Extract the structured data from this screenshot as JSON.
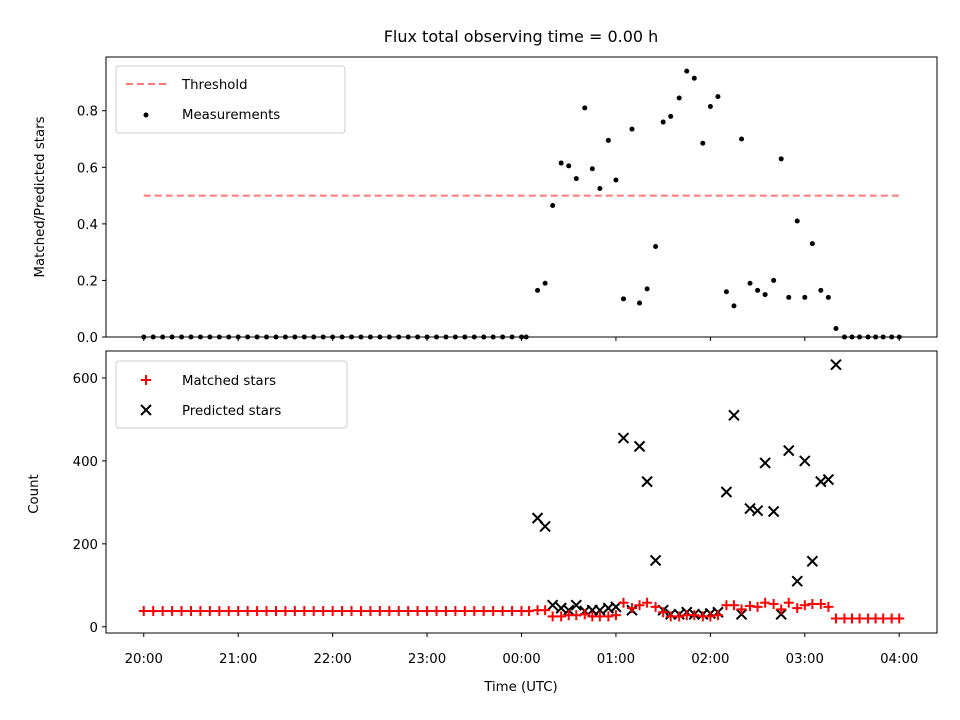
{
  "chart_data": [
    {
      "type": "scatter",
      "title": "Flux total observing time = 0.00 h",
      "xlabel": "",
      "ylabel": "Matched/Predicted stars",
      "ylim": [
        0,
        0.99
      ],
      "yticks": [
        0.0,
        0.2,
        0.4,
        0.6,
        0.8
      ],
      "ytick_labels": [
        "0.0",
        "0.2",
        "0.4",
        "0.6",
        "0.8"
      ],
      "xlim_hours": [
        -0.4,
        8.4
      ],
      "legend_position": "top-left",
      "legend": [
        "Threshold",
        "Measurements"
      ],
      "threshold": {
        "name": "Threshold",
        "value": 0.5,
        "x_range_hours": [
          0,
          8
        ],
        "color": "#ff7777"
      },
      "series": [
        {
          "name": "Measurements",
          "marker": "dot",
          "color": "#000000",
          "points": [
            [
              0.0,
              0
            ],
            [
              0.1,
              0
            ],
            [
              0.2,
              0
            ],
            [
              0.3,
              0
            ],
            [
              0.4,
              0
            ],
            [
              0.5,
              0
            ],
            [
              0.6,
              0
            ],
            [
              0.7,
              0
            ],
            [
              0.8,
              0
            ],
            [
              0.9,
              0
            ],
            [
              1.0,
              0
            ],
            [
              1.1,
              0
            ],
            [
              1.2,
              0
            ],
            [
              1.3,
              0
            ],
            [
              1.4,
              0
            ],
            [
              1.5,
              0
            ],
            [
              1.6,
              0
            ],
            [
              1.7,
              0
            ],
            [
              1.8,
              0
            ],
            [
              1.9,
              0
            ],
            [
              2.0,
              0
            ],
            [
              2.1,
              0
            ],
            [
              2.2,
              0
            ],
            [
              2.3,
              0
            ],
            [
              2.4,
              0
            ],
            [
              2.5,
              0
            ],
            [
              2.6,
              0
            ],
            [
              2.7,
              0
            ],
            [
              2.8,
              0
            ],
            [
              2.9,
              0
            ],
            [
              3.0,
              0
            ],
            [
              3.1,
              0
            ],
            [
              3.2,
              0
            ],
            [
              3.3,
              0
            ],
            [
              3.4,
              0
            ],
            [
              3.5,
              0
            ],
            [
              3.6,
              0
            ],
            [
              3.7,
              0
            ],
            [
              3.8,
              0
            ],
            [
              3.9,
              0
            ],
            [
              4.0,
              0
            ],
            [
              4.05,
              0
            ],
            [
              4.17,
              0.165
            ],
            [
              4.25,
              0.19
            ],
            [
              4.33,
              0.465
            ],
            [
              4.42,
              0.615
            ],
            [
              4.5,
              0.605
            ],
            [
              4.58,
              0.56
            ],
            [
              4.67,
              0.81
            ],
            [
              4.75,
              0.595
            ],
            [
              4.83,
              0.525
            ],
            [
              4.92,
              0.695
            ],
            [
              5.0,
              0.555
            ],
            [
              5.08,
              0.135
            ],
            [
              5.17,
              0.735
            ],
            [
              5.25,
              0.12
            ],
            [
              5.33,
              0.17
            ],
            [
              5.42,
              0.32
            ],
            [
              5.5,
              0.76
            ],
            [
              5.58,
              0.78
            ],
            [
              5.67,
              0.845
            ],
            [
              5.75,
              0.94
            ],
            [
              5.83,
              0.915
            ],
            [
              5.92,
              0.685
            ],
            [
              6.0,
              0.815
            ],
            [
              6.08,
              0.85
            ],
            [
              6.17,
              0.16
            ],
            [
              6.25,
              0.11
            ],
            [
              6.33,
              0.7
            ],
            [
              6.42,
              0.19
            ],
            [
              6.5,
              0.165
            ],
            [
              6.58,
              0.15
            ],
            [
              6.67,
              0.2
            ],
            [
              6.75,
              0.63
            ],
            [
              6.83,
              0.14
            ],
            [
              6.92,
              0.41
            ],
            [
              7.0,
              0.14
            ],
            [
              7.08,
              0.33
            ],
            [
              7.17,
              0.165
            ],
            [
              7.25,
              0.14
            ],
            [
              7.33,
              0.03
            ],
            [
              7.42,
              0
            ],
            [
              7.5,
              0
            ],
            [
              7.58,
              0
            ],
            [
              7.67,
              0
            ],
            [
              7.75,
              0
            ],
            [
              7.83,
              0
            ],
            [
              7.92,
              0
            ],
            [
              8.0,
              0
            ]
          ]
        }
      ]
    },
    {
      "type": "scatter",
      "title": "",
      "xlabel": "Time (UTC)",
      "ylabel": "Count",
      "ylim": [
        -15,
        665
      ],
      "yticks": [
        0,
        200,
        400,
        600
      ],
      "ytick_labels": [
        "0",
        "200",
        "400",
        "600"
      ],
      "xlim_hours": [
        -0.4,
        8.4
      ],
      "xticks_hours": [
        0,
        1,
        2,
        3,
        4,
        5,
        6,
        7,
        8
      ],
      "xtick_labels": [
        "20:00",
        "21:00",
        "22:00",
        "23:00",
        "00:00",
        "01:00",
        "02:00",
        "03:00",
        "04:00"
      ],
      "legend_position": "top-left",
      "legend": [
        "Matched stars",
        "Predicted stars"
      ],
      "series": [
        {
          "name": "Matched stars",
          "marker": "plus",
          "color": "#ff0000",
          "points": [
            [
              0.0,
              38
            ],
            [
              0.1,
              38
            ],
            [
              0.2,
              38
            ],
            [
              0.3,
              38
            ],
            [
              0.4,
              38
            ],
            [
              0.5,
              38
            ],
            [
              0.6,
              38
            ],
            [
              0.7,
              38
            ],
            [
              0.8,
              38
            ],
            [
              0.9,
              38
            ],
            [
              1.0,
              38
            ],
            [
              1.1,
              38
            ],
            [
              1.2,
              38
            ],
            [
              1.3,
              38
            ],
            [
              1.4,
              38
            ],
            [
              1.5,
              38
            ],
            [
              1.6,
              38
            ],
            [
              1.7,
              38
            ],
            [
              1.8,
              38
            ],
            [
              1.9,
              38
            ],
            [
              2.0,
              38
            ],
            [
              2.1,
              38
            ],
            [
              2.2,
              38
            ],
            [
              2.3,
              38
            ],
            [
              2.4,
              38
            ],
            [
              2.5,
              38
            ],
            [
              2.6,
              38
            ],
            [
              2.7,
              38
            ],
            [
              2.8,
              38
            ],
            [
              2.9,
              38
            ],
            [
              3.0,
              38
            ],
            [
              3.1,
              38
            ],
            [
              3.2,
              38
            ],
            [
              3.3,
              38
            ],
            [
              3.4,
              38
            ],
            [
              3.5,
              38
            ],
            [
              3.6,
              38
            ],
            [
              3.7,
              38
            ],
            [
              3.8,
              38
            ],
            [
              3.9,
              38
            ],
            [
              4.0,
              38
            ],
            [
              4.08,
              38
            ],
            [
              4.17,
              40
            ],
            [
              4.25,
              40
            ],
            [
              4.33,
              25
            ],
            [
              4.42,
              25
            ],
            [
              4.5,
              28
            ],
            [
              4.58,
              28
            ],
            [
              4.67,
              30
            ],
            [
              4.75,
              25
            ],
            [
              4.83,
              25
            ],
            [
              4.92,
              25
            ],
            [
              5.0,
              28
            ],
            [
              5.08,
              58
            ],
            [
              5.17,
              45
            ],
            [
              5.25,
              52
            ],
            [
              5.33,
              58
            ],
            [
              5.42,
              48
            ],
            [
              5.5,
              35
            ],
            [
              5.58,
              25
            ],
            [
              5.67,
              25
            ],
            [
              5.75,
              28
            ],
            [
              5.83,
              28
            ],
            [
              5.92,
              25
            ],
            [
              6.0,
              25
            ],
            [
              6.08,
              28
            ],
            [
              6.17,
              52
            ],
            [
              6.25,
              52
            ],
            [
              6.33,
              42
            ],
            [
              6.42,
              50
            ],
            [
              6.5,
              48
            ],
            [
              6.58,
              58
            ],
            [
              6.67,
              55
            ],
            [
              6.75,
              42
            ],
            [
              6.83,
              58
            ],
            [
              6.92,
              45
            ],
            [
              7.0,
              52
            ],
            [
              7.08,
              55
            ],
            [
              7.17,
              55
            ],
            [
              7.25,
              48
            ],
            [
              7.33,
              20
            ],
            [
              7.42,
              20
            ],
            [
              7.5,
              20
            ],
            [
              7.58,
              20
            ],
            [
              7.67,
              20
            ],
            [
              7.75,
              20
            ],
            [
              7.83,
              20
            ],
            [
              7.92,
              20
            ],
            [
              8.0,
              20
            ]
          ]
        },
        {
          "name": "Predicted stars",
          "marker": "x",
          "color": "#000000",
          "points": [
            [
              4.17,
              262
            ],
            [
              4.25,
              242
            ],
            [
              4.33,
              52
            ],
            [
              4.42,
              45
            ],
            [
              4.5,
              40
            ],
            [
              4.58,
              52
            ],
            [
              4.67,
              38
            ],
            [
              4.75,
              40
            ],
            [
              4.83,
              40
            ],
            [
              4.92,
              45
            ],
            [
              5.0,
              48
            ],
            [
              5.08,
              455
            ],
            [
              5.17,
              40
            ],
            [
              5.25,
              435
            ],
            [
              5.33,
              350
            ],
            [
              5.42,
              160
            ],
            [
              5.5,
              40
            ],
            [
              5.58,
              30
            ],
            [
              5.67,
              30
            ],
            [
              5.75,
              35
            ],
            [
              5.83,
              30
            ],
            [
              5.92,
              30
            ],
            [
              6.0,
              32
            ],
            [
              6.08,
              35
            ],
            [
              6.17,
              325
            ],
            [
              6.25,
              510
            ],
            [
              6.33,
              30
            ],
            [
              6.42,
              285
            ],
            [
              6.5,
              280
            ],
            [
              6.58,
              395
            ],
            [
              6.67,
              278
            ],
            [
              6.75,
              30
            ],
            [
              6.83,
              425
            ],
            [
              6.92,
              110
            ],
            [
              7.0,
              400
            ],
            [
              7.08,
              158
            ],
            [
              7.17,
              350
            ],
            [
              7.25,
              355
            ],
            [
              7.33,
              632
            ]
          ]
        }
      ]
    }
  ]
}
